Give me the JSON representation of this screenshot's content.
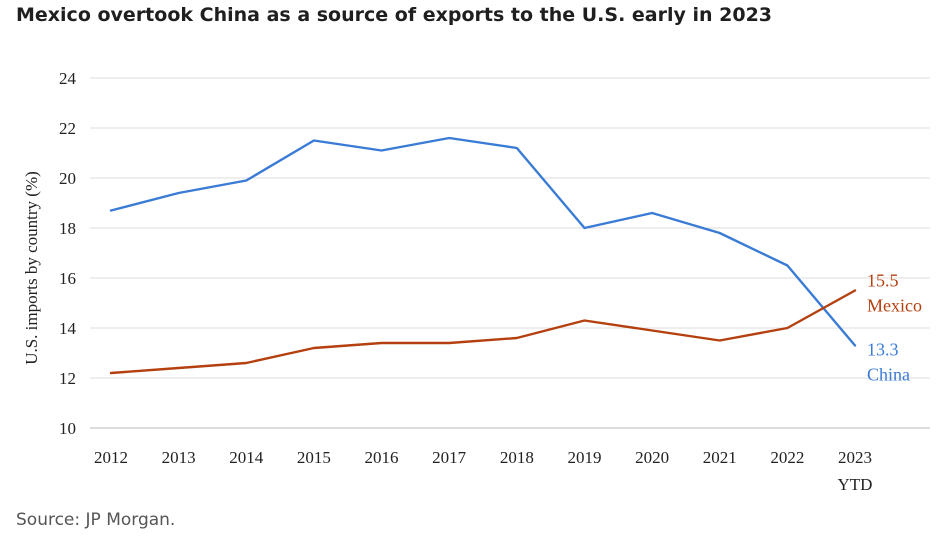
{
  "title": "Mexico overtook China as a source of exports to the U.S. early in 2023",
  "source": "Source: JP Morgan.",
  "colors": {
    "china": "#3a7bd5",
    "mexico": "#b5400f",
    "grid": "#dddddd",
    "axis_text": "#222222"
  },
  "chart_data": {
    "type": "line",
    "title": "Mexico overtook China as a source of exports to the U.S. early in 2023",
    "xlabel": "",
    "ylabel": "U.S. imports by country (%)",
    "categories": [
      "2012",
      "2013",
      "2014",
      "2015",
      "2016",
      "2017",
      "2018",
      "2019",
      "2020",
      "2021",
      "2022",
      "2023"
    ],
    "category_sublabels": [
      "",
      "",
      "",
      "",
      "",
      "",
      "",
      "",
      "",
      "",
      "",
      "YTD"
    ],
    "ylim": [
      10,
      24
    ],
    "yticks": [
      10,
      12,
      14,
      16,
      18,
      20,
      22,
      24
    ],
    "grid": true,
    "series": [
      {
        "name": "China",
        "color": "#3a7bd5",
        "values": [
          18.7,
          19.4,
          19.9,
          21.5,
          21.1,
          21.6,
          21.2,
          18.0,
          18.6,
          17.8,
          16.5,
          13.3
        ],
        "end_value_label": "13.3",
        "end_name_label": "China"
      },
      {
        "name": "Mexico",
        "color": "#b5400f",
        "values": [
          12.2,
          12.4,
          12.6,
          13.2,
          13.4,
          13.4,
          13.6,
          14.3,
          13.9,
          13.5,
          14.0,
          15.5
        ],
        "end_value_label": "15.5",
        "end_name_label": "Mexico"
      }
    ]
  }
}
